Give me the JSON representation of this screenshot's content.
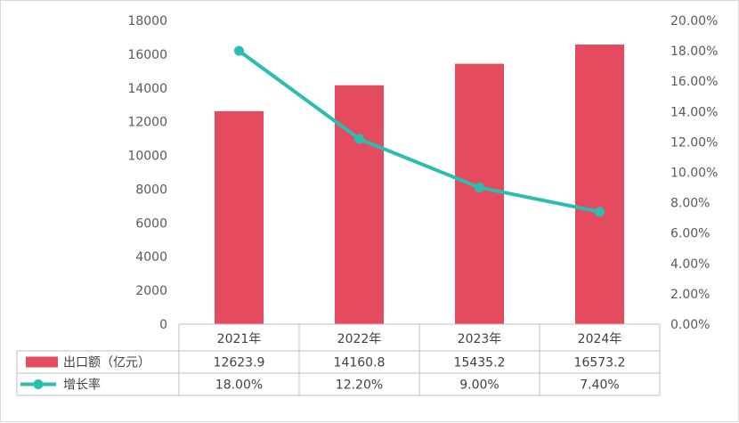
{
  "chart_data": {
    "type": "bar",
    "categories": [
      "2021年",
      "2022年",
      "2023年",
      "2024年"
    ],
    "series": [
      {
        "name": "出口额（亿元）",
        "type": "bar",
        "axis": "left",
        "color": "#e54b5e",
        "values": [
          12623.9,
          14160.8,
          15435.2,
          16573.2
        ],
        "value_labels": [
          "12623.9",
          "14160.8",
          "15435.2",
          "16573.2"
        ]
      },
      {
        "name": "增长率",
        "type": "line",
        "axis": "right",
        "color": "#2bbdb0",
        "values": [
          18.0,
          12.2,
          9.0,
          7.4
        ],
        "value_labels": [
          "18.00%",
          "12.20%",
          "9.00%",
          "7.40%"
        ]
      }
    ],
    "title": "",
    "xlabel": "",
    "ylabel": "",
    "ylim": [
      0,
      18000
    ],
    "y2lim": [
      0,
      20
    ],
    "y_ticks": [
      "0",
      "2000",
      "4000",
      "6000",
      "8000",
      "10000",
      "12000",
      "14000",
      "16000",
      "18000"
    ],
    "y2_ticks": [
      "0.00%",
      "2.00%",
      "4.00%",
      "6.00%",
      "8.00%",
      "10.00%",
      "12.00%",
      "14.00%",
      "16.00%",
      "18.00%",
      "20.00%"
    ],
    "grid": false,
    "legend": "data-table"
  }
}
